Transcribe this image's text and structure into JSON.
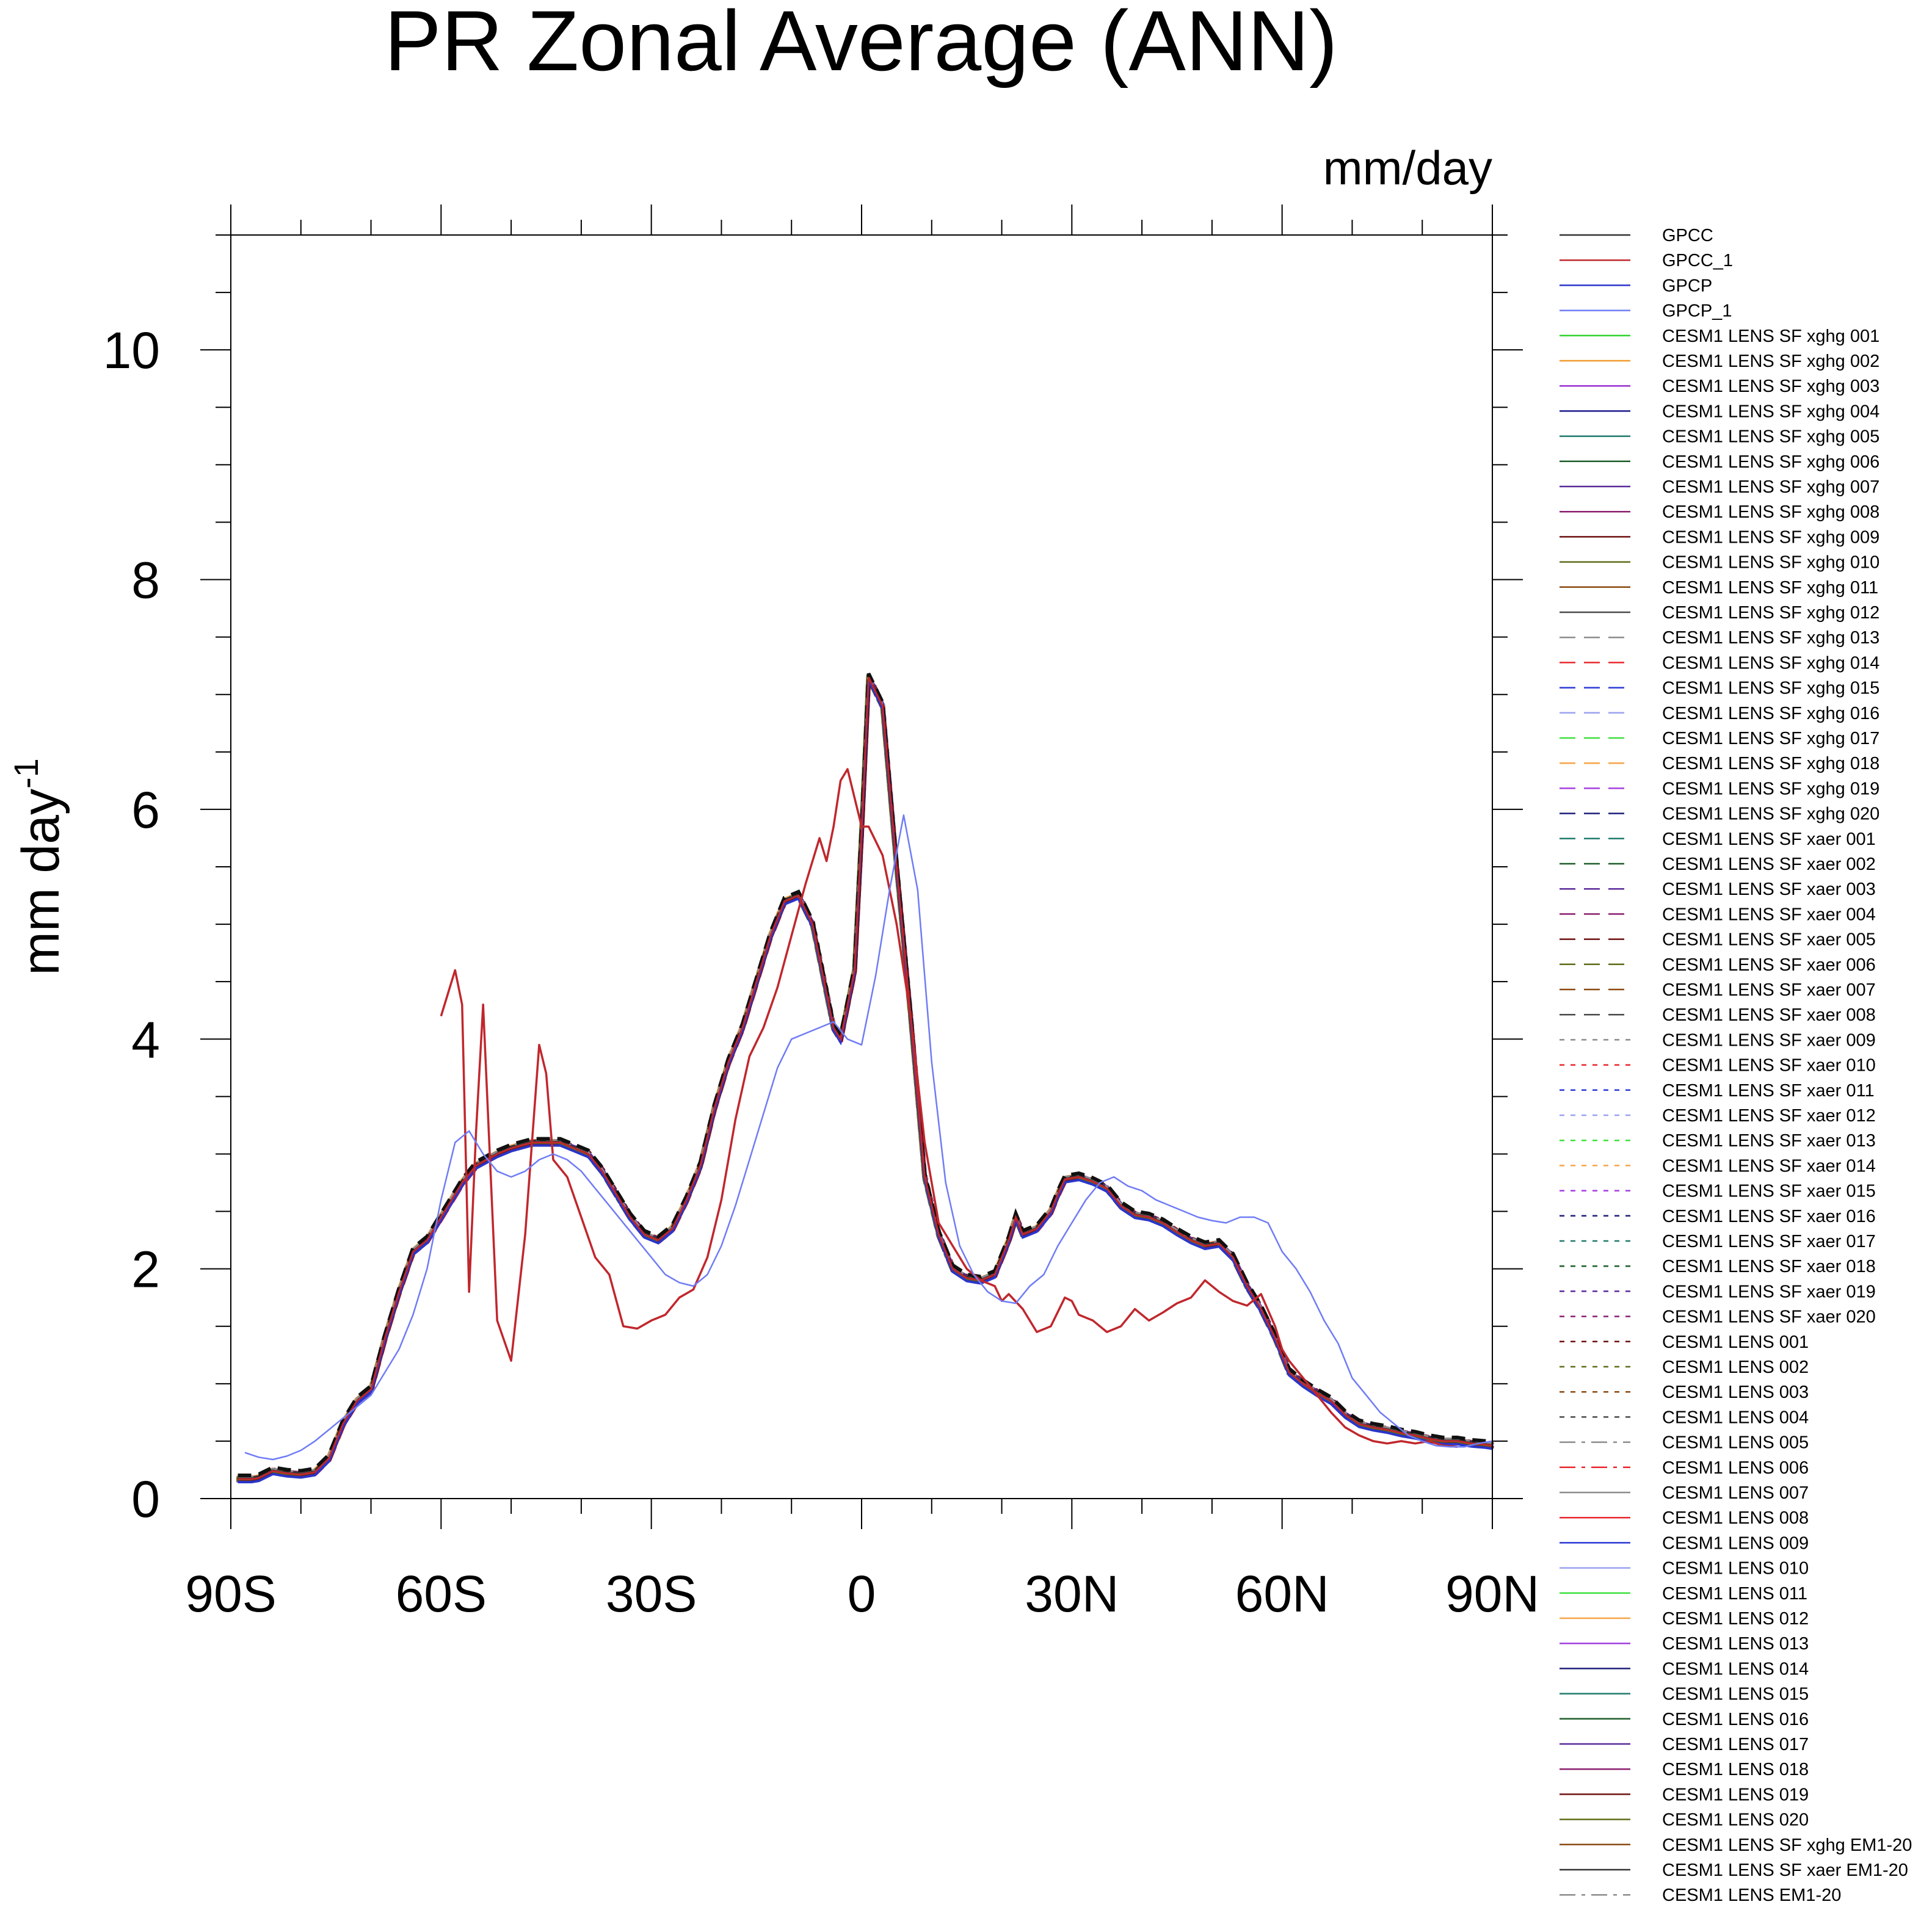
{
  "chart_data": {
    "type": "line",
    "title": "PR Zonal Average (ANN)",
    "units_label": "mm/day",
    "ylabel": "mm day",
    "ylabel_superscript": "-1",
    "xlim": [
      -90,
      90
    ],
    "ylim": [
      0,
      11
    ],
    "y_ticks": [
      0,
      2,
      4,
      6,
      8,
      10
    ],
    "y_tick_labels": [
      "0",
      "2",
      "4",
      "6",
      "8",
      "10"
    ],
    "x_ticks": [
      -90,
      -60,
      -30,
      0,
      30,
      60,
      90
    ],
    "x_tick_labels": [
      "90S",
      "60S",
      "30S",
      "0",
      "30N",
      "60N",
      "90N"
    ],
    "grid": false,
    "legend_position": "right",
    "ensemble_mean_curve": {
      "x": [
        -89,
        -87,
        -86,
        -84,
        -82,
        -80,
        -78,
        -76,
        -74,
        -72,
        -70,
        -68,
        -66,
        -64,
        -62,
        -60,
        -57,
        -55,
        -52,
        -50,
        -47,
        -45,
        -43,
        -41,
        -39,
        -37,
        -35,
        -33,
        -31,
        -29,
        -27,
        -25,
        -23,
        -21,
        -19,
        -17,
        -15,
        -13,
        -11,
        -9,
        -7,
        -5,
        -4,
        -3,
        -1,
        0,
        1,
        3,
        5,
        7,
        8,
        9,
        11,
        13,
        15,
        17,
        19,
        21,
        22,
        23,
        25,
        27,
        28,
        29,
        31,
        33,
        35,
        37,
        39,
        41,
        43,
        45,
        47,
        49,
        51,
        53,
        55,
        57,
        59,
        60,
        61,
        63,
        65,
        67,
        69,
        71,
        73,
        75,
        77,
        79,
        81,
        83,
        85,
        87,
        89,
        90
      ],
      "y": [
        0.17,
        0.17,
        0.18,
        0.24,
        0.22,
        0.21,
        0.23,
        0.35,
        0.65,
        0.85,
        0.95,
        1.4,
        1.8,
        2.15,
        2.25,
        2.45,
        2.75,
        2.9,
        3.0,
        3.05,
        3.1,
        3.1,
        3.1,
        3.05,
        3.0,
        2.85,
        2.65,
        2.45,
        2.3,
        2.25,
        2.35,
        2.6,
        2.9,
        3.4,
        3.8,
        4.1,
        4.5,
        4.9,
        5.2,
        5.25,
        5.0,
        4.4,
        4.1,
        4.0,
        4.6,
        5.8,
        7.15,
        6.9,
        5.5,
        4.2,
        3.5,
        2.8,
        2.3,
        2.0,
        1.92,
        1.9,
        1.95,
        2.25,
        2.45,
        2.3,
        2.35,
        2.5,
        2.65,
        2.78,
        2.8,
        2.76,
        2.7,
        2.55,
        2.47,
        2.45,
        2.4,
        2.32,
        2.25,
        2.2,
        2.22,
        2.1,
        1.85,
        1.65,
        1.4,
        1.25,
        1.1,
        1.0,
        0.92,
        0.85,
        0.73,
        0.65,
        0.62,
        0.6,
        0.57,
        0.55,
        0.52,
        0.5,
        0.5,
        0.48,
        0.47,
        0.46
      ]
    },
    "series": [
      {
        "name": "GPCC",
        "color": "#333333",
        "dash": "solid",
        "x": [],
        "y": []
      },
      {
        "name": "GPCC_1",
        "color": "#c0272d",
        "dash": "solid",
        "x": [
          -60,
          -58,
          -57,
          -56,
          -55,
          -54,
          -52,
          -50,
          -48,
          -46,
          -45,
          -44,
          -42,
          -40,
          -38,
          -36,
          -34,
          -32,
          -30,
          -28,
          -26,
          -24,
          -22,
          -20,
          -18,
          -16,
          -14,
          -12,
          -10,
          -8,
          -6,
          -5,
          -4,
          -3,
          -2,
          -1,
          0,
          1,
          3,
          5,
          7,
          9,
          11,
          13,
          15,
          17,
          19,
          20,
          21,
          23,
          25,
          27,
          29,
          30,
          31,
          33,
          35,
          37,
          39,
          41,
          43,
          45,
          47,
          49,
          51,
          53,
          55,
          57,
          59,
          60,
          61,
          63,
          65,
          67,
          69,
          71,
          73,
          75,
          77,
          79,
          81,
          83,
          85
        ],
        "y": [
          4.2,
          4.6,
          4.3,
          1.8,
          3.2,
          4.3,
          1.55,
          1.2,
          2.3,
          3.95,
          3.7,
          2.95,
          2.8,
          2.45,
          2.1,
          1.95,
          1.5,
          1.48,
          1.55,
          1.6,
          1.75,
          1.82,
          2.1,
          2.6,
          3.3,
          3.85,
          4.1,
          4.45,
          4.9,
          5.35,
          5.75,
          5.55,
          5.85,
          6.25,
          6.35,
          6.1,
          5.85,
          5.85,
          5.6,
          5.0,
          4.2,
          3.1,
          2.4,
          2.2,
          2.0,
          1.9,
          1.85,
          1.72,
          1.78,
          1.65,
          1.45,
          1.5,
          1.75,
          1.72,
          1.6,
          1.55,
          1.45,
          1.5,
          1.65,
          1.55,
          1.62,
          1.7,
          1.75,
          1.9,
          1.8,
          1.72,
          1.68,
          1.78,
          1.5,
          1.3,
          1.2,
          1.05,
          0.9,
          0.75,
          0.62,
          0.55,
          0.5,
          0.48,
          0.5,
          0.48,
          0.5,
          0.46,
          0.45
        ]
      },
      {
        "name": "GPCP",
        "color": "#2a35c9",
        "dash": "solid",
        "x": [],
        "y": []
      },
      {
        "name": "GPCP_1",
        "color": "#6f7cf5",
        "dash": "solid",
        "x": [
          -88,
          -86,
          -84,
          -82,
          -80,
          -78,
          -76,
          -74,
          -72,
          -70,
          -68,
          -66,
          -64,
          -62,
          -60,
          -58,
          -56,
          -54,
          -52,
          -50,
          -48,
          -46,
          -44,
          -42,
          -40,
          -38,
          -36,
          -34,
          -32,
          -30,
          -28,
          -26,
          -24,
          -22,
          -20,
          -18,
          -16,
          -14,
          -12,
          -10,
          -8,
          -6,
          -4,
          -2,
          0,
          2,
          4,
          6,
          8,
          10,
          12,
          14,
          16,
          18,
          20,
          22,
          24,
          26,
          28,
          30,
          32,
          34,
          36,
          38,
          40,
          42,
          44,
          46,
          48,
          50,
          52,
          54,
          56,
          58,
          60,
          62,
          64,
          66,
          68,
          70,
          72,
          74,
          76,
          78,
          80,
          82,
          84,
          86,
          88,
          90
        ],
        "y": [
          0.4,
          0.36,
          0.34,
          0.37,
          0.42,
          0.5,
          0.6,
          0.7,
          0.8,
          0.9,
          1.1,
          1.3,
          1.6,
          2.0,
          2.6,
          3.1,
          3.2,
          3.0,
          2.85,
          2.8,
          2.85,
          2.95,
          3.0,
          2.95,
          2.85,
          2.7,
          2.55,
          2.4,
          2.25,
          2.1,
          1.95,
          1.88,
          1.85,
          1.95,
          2.2,
          2.55,
          2.95,
          3.35,
          3.75,
          4.0,
          4.05,
          4.1,
          4.15,
          4.0,
          3.95,
          4.55,
          5.3,
          5.95,
          5.3,
          3.8,
          2.75,
          2.2,
          1.95,
          1.8,
          1.72,
          1.7,
          1.85,
          1.95,
          2.2,
          2.4,
          2.6,
          2.75,
          2.8,
          2.72,
          2.68,
          2.6,
          2.55,
          2.5,
          2.45,
          2.42,
          2.4,
          2.45,
          2.45,
          2.4,
          2.15,
          2.0,
          1.8,
          1.55,
          1.35,
          1.05,
          0.9,
          0.75,
          0.65,
          0.55,
          0.5,
          0.46,
          0.45,
          0.45,
          0.48,
          0.5
        ]
      },
      {
        "name": "CESM1 LENS SF xghg 001",
        "color": "#2fd32f",
        "dash": "solid",
        "x": [],
        "y": []
      },
      {
        "name": "CESM1 LENS SF xghg 002",
        "color": "#f29a2e",
        "dash": "solid",
        "x": [],
        "y": []
      },
      {
        "name": "CESM1 LENS SF xghg 003",
        "color": "#9b2fd3",
        "dash": "solid",
        "x": [],
        "y": []
      },
      {
        "name": "CESM1 LENS SF xghg 004",
        "color": "#1b1b8f",
        "dash": "solid",
        "x": [],
        "y": []
      },
      {
        "name": "CESM1 LENS SF xghg 005",
        "color": "#1f7a6e",
        "dash": "solid",
        "x": [],
        "y": []
      },
      {
        "name": "CESM1 LENS SF xghg 006",
        "color": "#1e5e2a",
        "dash": "solid",
        "x": [],
        "y": []
      },
      {
        "name": "CESM1 LENS SF xghg 007",
        "color": "#5a2a9a",
        "dash": "solid",
        "x": [],
        "y": []
      },
      {
        "name": "CESM1 LENS SF xghg 008",
        "color": "#8a1f6e",
        "dash": "solid",
        "x": [],
        "y": []
      },
      {
        "name": "CESM1 LENS SF xghg 009",
        "color": "#6e1010",
        "dash": "solid",
        "x": [],
        "y": []
      },
      {
        "name": "CESM1 LENS SF xghg 010",
        "color": "#5e6e1a",
        "dash": "solid",
        "x": [],
        "y": []
      },
      {
        "name": "CESM1 LENS SF xghg 011",
        "color": "#8a4a12",
        "dash": "solid",
        "x": [],
        "y": []
      },
      {
        "name": "CESM1 LENS SF xghg 012",
        "color": "#4a4a4a",
        "dash": "solid",
        "x": [],
        "y": []
      },
      {
        "name": "CESM1 LENS SF xghg 013",
        "color": "#8c8c8c",
        "dash": "dash",
        "x": [],
        "y": []
      },
      {
        "name": "CESM1 LENS SF xghg 014",
        "color": "#e8292e",
        "dash": "dash",
        "x": [],
        "y": []
      },
      {
        "name": "CESM1 LENS SF xghg 015",
        "color": "#2d3ad6",
        "dash": "dash",
        "x": [],
        "y": []
      },
      {
        "name": "CESM1 LENS SF xghg 016",
        "color": "#9aa2f0",
        "dash": "dash",
        "x": [],
        "y": []
      },
      {
        "name": "CESM1 LENS SF xghg 017",
        "color": "#3ee03e",
        "dash": "dash",
        "x": [],
        "y": []
      },
      {
        "name": "CESM1 LENS SF xghg 018",
        "color": "#f5a447",
        "dash": "dash",
        "x": [],
        "y": []
      },
      {
        "name": "CESM1 LENS SF xghg 019",
        "color": "#a43ee0",
        "dash": "dash",
        "x": [],
        "y": []
      },
      {
        "name": "CESM1 LENS SF xghg 020",
        "color": "#1f1f7a",
        "dash": "dash",
        "x": [],
        "y": []
      },
      {
        "name": "CESM1 LENS SF xaer 001",
        "color": "#1f7a6e",
        "dash": "dash",
        "x": [],
        "y": []
      },
      {
        "name": "CESM1 LENS SF xaer 002",
        "color": "#1e5e2a",
        "dash": "dash",
        "x": [],
        "y": []
      },
      {
        "name": "CESM1 LENS SF xaer 003",
        "color": "#5a2a9a",
        "dash": "dash",
        "x": [],
        "y": []
      },
      {
        "name": "CESM1 LENS SF xaer 004",
        "color": "#8a1f6e",
        "dash": "dash",
        "x": [],
        "y": []
      },
      {
        "name": "CESM1 LENS SF xaer 005",
        "color": "#6e1010",
        "dash": "dash",
        "x": [],
        "y": []
      },
      {
        "name": "CESM1 LENS SF xaer 006",
        "color": "#5e6e1a",
        "dash": "dash",
        "x": [],
        "y": []
      },
      {
        "name": "CESM1 LENS SF xaer 007",
        "color": "#8a4a12",
        "dash": "dash",
        "x": [],
        "y": []
      },
      {
        "name": "CESM1 LENS SF xaer 008",
        "color": "#4a4a4a",
        "dash": "dash",
        "x": [],
        "y": []
      },
      {
        "name": "CESM1 LENS SF xaer 009",
        "color": "#8c8c8c",
        "dash": "dot",
        "x": [],
        "y": []
      },
      {
        "name": "CESM1 LENS SF xaer 010",
        "color": "#e8292e",
        "dash": "dot",
        "x": [],
        "y": []
      },
      {
        "name": "CESM1 LENS SF xaer 011",
        "color": "#2d3ad6",
        "dash": "dot",
        "x": [],
        "y": []
      },
      {
        "name": "CESM1 LENS SF xaer 012",
        "color": "#9aa2f0",
        "dash": "dot",
        "x": [],
        "y": []
      },
      {
        "name": "CESM1 LENS SF xaer 013",
        "color": "#3ee03e",
        "dash": "dot",
        "x": [],
        "y": []
      },
      {
        "name": "CESM1 LENS SF xaer 014",
        "color": "#f5a447",
        "dash": "dot",
        "x": [],
        "y": []
      },
      {
        "name": "CESM1 LENS SF xaer 015",
        "color": "#a43ee0",
        "dash": "dot",
        "x": [],
        "y": []
      },
      {
        "name": "CESM1 LENS SF xaer 016",
        "color": "#1f1f7a",
        "dash": "dot",
        "x": [],
        "y": []
      },
      {
        "name": "CESM1 LENS SF xaer 017",
        "color": "#1f7a6e",
        "dash": "dot",
        "x": [],
        "y": []
      },
      {
        "name": "CESM1 LENS SF xaer 018",
        "color": "#1e5e2a",
        "dash": "dot",
        "x": [],
        "y": []
      },
      {
        "name": "CESM1 LENS SF xaer 019",
        "color": "#5a2a9a",
        "dash": "dot",
        "x": [],
        "y": []
      },
      {
        "name": "CESM1 LENS SF xaer 020",
        "color": "#8a1f6e",
        "dash": "dot",
        "x": [],
        "y": []
      },
      {
        "name": "CESM1 LENS 001",
        "color": "#6e1010",
        "dash": "dot",
        "x": [],
        "y": []
      },
      {
        "name": "CESM1 LENS 002",
        "color": "#5e6e1a",
        "dash": "dot",
        "x": [],
        "y": []
      },
      {
        "name": "CESM1 LENS 003",
        "color": "#8a4a12",
        "dash": "dot",
        "x": [],
        "y": []
      },
      {
        "name": "CESM1 LENS 004",
        "color": "#4a4a4a",
        "dash": "dot",
        "x": [],
        "y": []
      },
      {
        "name": "CESM1 LENS 005",
        "color": "#8c8c8c",
        "dash": "dashdot",
        "x": [],
        "y": []
      },
      {
        "name": "CESM1 LENS 006",
        "color": "#e8292e",
        "dash": "dashdot",
        "x": [],
        "y": []
      },
      {
        "name": "CESM1 LENS 007",
        "color": "#8c8c8c",
        "dash": "solid",
        "x": [],
        "y": []
      },
      {
        "name": "CESM1 LENS 008",
        "color": "#e8292e",
        "dash": "solid",
        "x": [],
        "y": []
      },
      {
        "name": "CESM1 LENS 009",
        "color": "#2d3ad6",
        "dash": "solid",
        "x": [],
        "y": []
      },
      {
        "name": "CESM1 LENS 010",
        "color": "#9aa2f0",
        "dash": "solid",
        "x": [],
        "y": []
      },
      {
        "name": "CESM1 LENS 011",
        "color": "#3ee03e",
        "dash": "solid",
        "x": [],
        "y": []
      },
      {
        "name": "CESM1 LENS 012",
        "color": "#f5a447",
        "dash": "solid",
        "x": [],
        "y": []
      },
      {
        "name": "CESM1 LENS 013",
        "color": "#a43ee0",
        "dash": "solid",
        "x": [],
        "y": []
      },
      {
        "name": "CESM1 LENS 014",
        "color": "#1f1f7a",
        "dash": "solid",
        "x": [],
        "y": []
      },
      {
        "name": "CESM1 LENS 015",
        "color": "#1f7a6e",
        "dash": "solid",
        "x": [],
        "y": []
      },
      {
        "name": "CESM1 LENS 016",
        "color": "#1e5e2a",
        "dash": "solid",
        "x": [],
        "y": []
      },
      {
        "name": "CESM1 LENS 017",
        "color": "#5a2a9a",
        "dash": "solid",
        "x": [],
        "y": []
      },
      {
        "name": "CESM1 LENS 018",
        "color": "#8a1f6e",
        "dash": "solid",
        "x": [],
        "y": []
      },
      {
        "name": "CESM1 LENS 019",
        "color": "#6e1010",
        "dash": "solid",
        "x": [],
        "y": []
      },
      {
        "name": "CESM1 LENS 020",
        "color": "#5e6e1a",
        "dash": "solid",
        "x": [],
        "y": []
      },
      {
        "name": "CESM1 LENS SF xghg EM1-20",
        "color": "#8a4a12",
        "dash": "solid",
        "x": [],
        "y": []
      },
      {
        "name": "CESM1 LENS SF xaer EM1-20",
        "color": "#333333",
        "dash": "solid",
        "x": [],
        "y": []
      },
      {
        "name": "CESM1 LENS EM1-20",
        "color": "#8c8c8c",
        "dash": "dashdot",
        "x": [],
        "y": []
      }
    ]
  }
}
